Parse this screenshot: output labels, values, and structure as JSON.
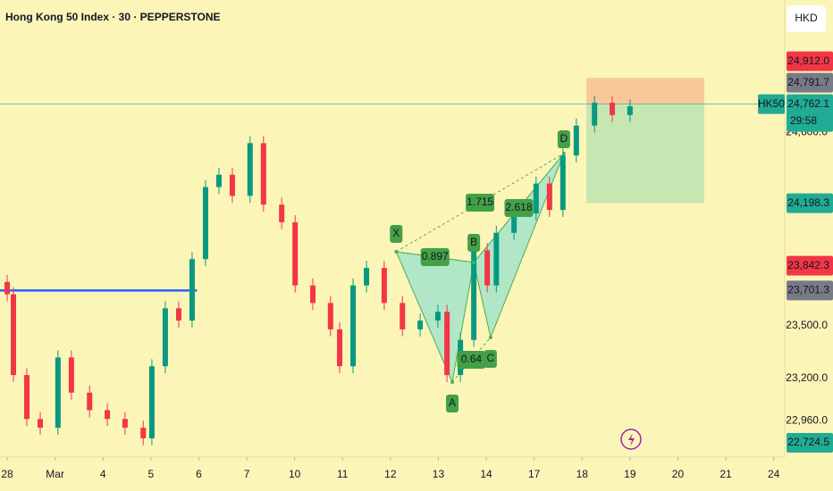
{
  "header": {
    "title": "Hong Kong 50 Index · 30 · PEPPERSTONE",
    "currency": "HKD"
  },
  "chart_data": {
    "type": "candlestick",
    "x": [
      0,
      0.13,
      0.41,
      0.69,
      1.06,
      1.34,
      1.72,
      2.09,
      2.46,
      2.84,
      3.02,
      3.3,
      3.58,
      3.86,
      4.14,
      4.42,
      4.7,
      5.07,
      5.35,
      5.73,
      6.01,
      6.38,
      6.75,
      6.94,
      7.22,
      7.5,
      7.87,
      8.25,
      8.62,
      8.99,
      9.18,
      9.46,
      9.74,
      10.02,
      10.21,
      10.58,
      11.04,
      11.32,
      11.6,
      11.88,
      12.26,
      12.63,
      13.0
    ],
    "open": [
      23750,
      23680,
      23220,
      22970,
      22920,
      23320,
      23120,
      23020,
      22970,
      22920,
      22860,
      23270,
      23600,
      23530,
      23880,
      24290,
      24360,
      24240,
      24540,
      24190,
      24090,
      23730,
      23630,
      23480,
      23270,
      23730,
      23830,
      23630,
      23480,
      23530,
      23580,
      23220,
      23420,
      23930,
      23730,
      24030,
      24140,
      24310,
      24160,
      24470,
      24640,
      24770,
      24700
    ],
    "high": [
      23790,
      23720,
      23260,
      23010,
      23360,
      23360,
      23160,
      23060,
      23010,
      22960,
      23310,
      23640,
      23640,
      23920,
      24330,
      24400,
      24400,
      24580,
      24580,
      24230,
      24130,
      23770,
      23670,
      23520,
      23770,
      23870,
      23870,
      23670,
      23570,
      23620,
      23620,
      23460,
      23970,
      23970,
      24070,
      24180,
      24350,
      24350,
      24510,
      24680,
      24810,
      24810,
      24790
    ],
    "low": [
      23640,
      23180,
      22930,
      22880,
      22880,
      23080,
      22980,
      22930,
      22880,
      22820,
      22820,
      23230,
      23490,
      23490,
      23840,
      24250,
      24200,
      24200,
      24150,
      24050,
      23690,
      23590,
      23440,
      23230,
      23230,
      23690,
      23590,
      23440,
      23440,
      23490,
      23180,
      23180,
      23380,
      23690,
      23690,
      23990,
      24100,
      24120,
      24120,
      24430,
      24600,
      24660,
      24660
    ],
    "close": [
      23680,
      23220,
      22970,
      22920,
      23320,
      23120,
      23020,
      22970,
      22920,
      22860,
      23270,
      23600,
      23530,
      23880,
      24290,
      24360,
      24240,
      24540,
      24190,
      24090,
      23730,
      23630,
      23480,
      23270,
      23730,
      23830,
      23630,
      23480,
      23530,
      23580,
      23220,
      23420,
      23930,
      23730,
      24030,
      24140,
      24310,
      24160,
      24470,
      24640,
      24770,
      24700,
      24750
    ],
    "up_color": "#089981",
    "down_color": "#f23645",
    "xlim": [
      -0.15,
      16.23
    ],
    "xticks": [
      {
        "value": 0,
        "label": "28"
      },
      {
        "value": 1,
        "label": "Mar"
      },
      {
        "value": 2,
        "label": "4"
      },
      {
        "value": 3,
        "label": "5"
      },
      {
        "value": 4,
        "label": "6"
      },
      {
        "value": 5,
        "label": "7"
      },
      {
        "value": 6,
        "label": "10"
      },
      {
        "value": 7,
        "label": "11"
      },
      {
        "value": 8,
        "label": "12"
      },
      {
        "value": 9,
        "label": "13"
      },
      {
        "value": 10,
        "label": "14"
      },
      {
        "value": 11,
        "label": "17"
      },
      {
        "value": 12,
        "label": "18"
      },
      {
        "value": 13,
        "label": "19"
      },
      {
        "value": 14,
        "label": "20"
      },
      {
        "value": 15,
        "label": "21"
      },
      {
        "value": 16,
        "label": "24"
      }
    ],
    "ylim": [
      22753,
      25355
    ],
    "yticks": [
      {
        "value": 24600,
        "label": "24,600.0"
      },
      {
        "value": 23500,
        "label": "23,500.0"
      },
      {
        "value": 23200,
        "label": "23,200.0"
      },
      {
        "value": 22960,
        "label": "22,960.0"
      }
    ],
    "price_labels": [
      {
        "value": 24912,
        "label": "24,912.0",
        "color": "#f23645"
      },
      {
        "value": 24791.7,
        "label": "24,791.7",
        "color": "#787b86"
      },
      {
        "value": 24762.1,
        "label": "24,762.1",
        "color": "#22ab94",
        "tag": "HK50",
        "countdown": "29:58"
      },
      {
        "value": 24198.3,
        "label": "24,198.3",
        "color": "#22ab94"
      },
      {
        "value": 23842.3,
        "label": "23,842.3",
        "color": "#f23645"
      },
      {
        "value": 23701.3,
        "label": "23,701.3",
        "color": "#787b86"
      },
      {
        "value": 22724.5,
        "label": "22,724.5",
        "color": "#22ab94"
      }
    ],
    "level_end_x": 3.96,
    "position": {
      "x": [
        12.09,
        14.55
      ]
    },
    "pattern": {
      "points": [
        {
          "name": "X",
          "x": 8.12,
          "y": 23922
        },
        {
          "name": "A",
          "x": 9.29,
          "y": 23180
        },
        {
          "name": "B",
          "x": 9.74,
          "y": 23861
        },
        {
          "name": "C",
          "x": 10.09,
          "y": 23434
        },
        {
          "name": "D",
          "x": 11.62,
          "y": 24481
        }
      ],
      "ratios": [
        "0.897",
        "0.64",
        "1.715",
        "2.618"
      ]
    }
  }
}
